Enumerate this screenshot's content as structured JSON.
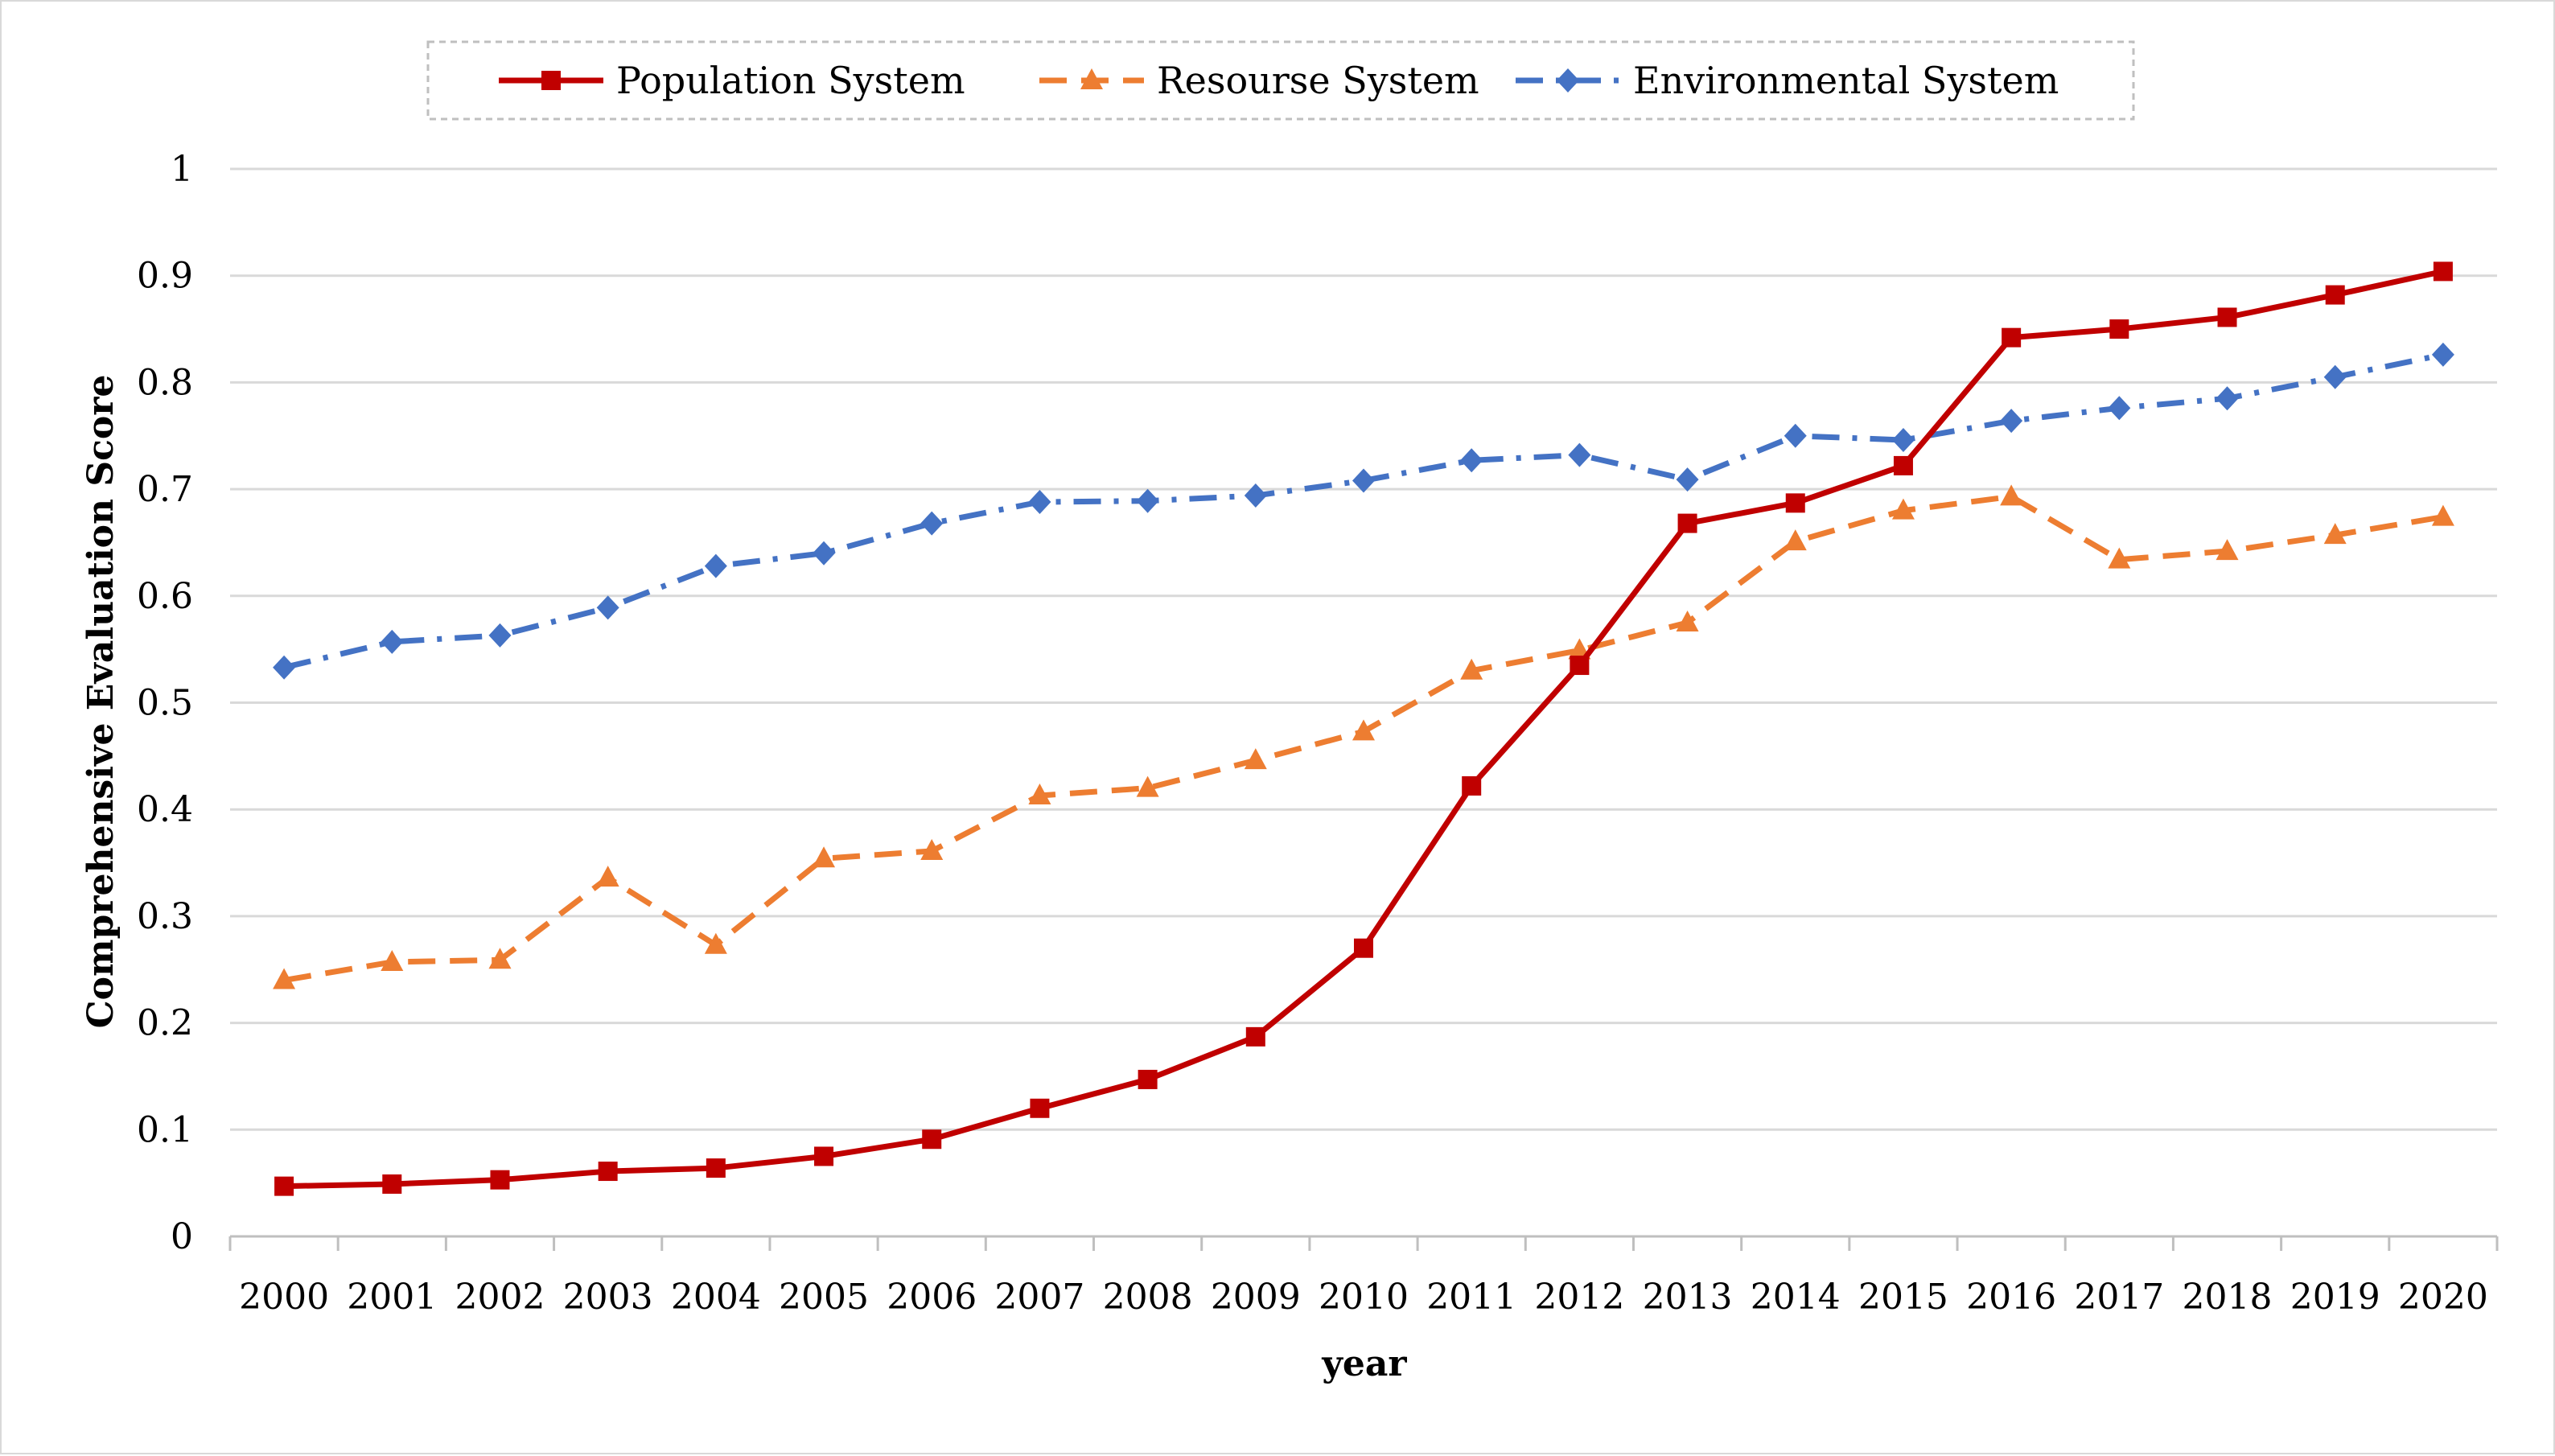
{
  "chart_data": {
    "type": "line",
    "title": "",
    "xlabel": "year",
    "ylabel": "Comprehensive Evaluation Score",
    "ylim": [
      0,
      1
    ],
    "yticks": [
      "0",
      "0.1",
      "0.2",
      "0.3",
      "0.4",
      "0.5",
      "0.6",
      "0.7",
      "0.8",
      "0.9",
      "1"
    ],
    "grid": true,
    "legend_position": "top",
    "categories": [
      "2000",
      "2001",
      "2002",
      "2003",
      "2004",
      "2005",
      "2006",
      "2007",
      "2008",
      "2009",
      "2010",
      "2011",
      "2012",
      "2013",
      "2014",
      "2015",
      "2016",
      "2017",
      "2018",
      "2019",
      "2020"
    ],
    "series": [
      {
        "name": "Population System",
        "color": "#c00000",
        "marker": "square",
        "line_style": "solid",
        "values": [
          0.047,
          0.049,
          0.053,
          0.061,
          0.064,
          0.075,
          0.091,
          0.12,
          0.147,
          0.187,
          0.27,
          0.422,
          0.535,
          0.668,
          0.687,
          0.722,
          0.842,
          0.85,
          0.861,
          0.882,
          0.904
        ]
      },
      {
        "name": "Resourse System",
        "color": "#ed7d31",
        "marker": "triangle",
        "line_style": "dash",
        "values": [
          0.24,
          0.257,
          0.259,
          0.336,
          0.273,
          0.354,
          0.361,
          0.413,
          0.42,
          0.446,
          0.473,
          0.53,
          0.549,
          0.575,
          0.651,
          0.68,
          0.693,
          0.634,
          0.642,
          0.657,
          0.674
        ]
      },
      {
        "name": "Environmental System",
        "color": "#4472c4",
        "marker": "diamond",
        "line_style": "dashdot",
        "values": [
          0.533,
          0.557,
          0.563,
          0.589,
          0.628,
          0.64,
          0.668,
          0.688,
          0.689,
          0.694,
          0.708,
          0.727,
          0.732,
          0.709,
          0.75,
          0.746,
          0.764,
          0.776,
          0.785,
          0.805,
          0.826
        ]
      }
    ]
  }
}
